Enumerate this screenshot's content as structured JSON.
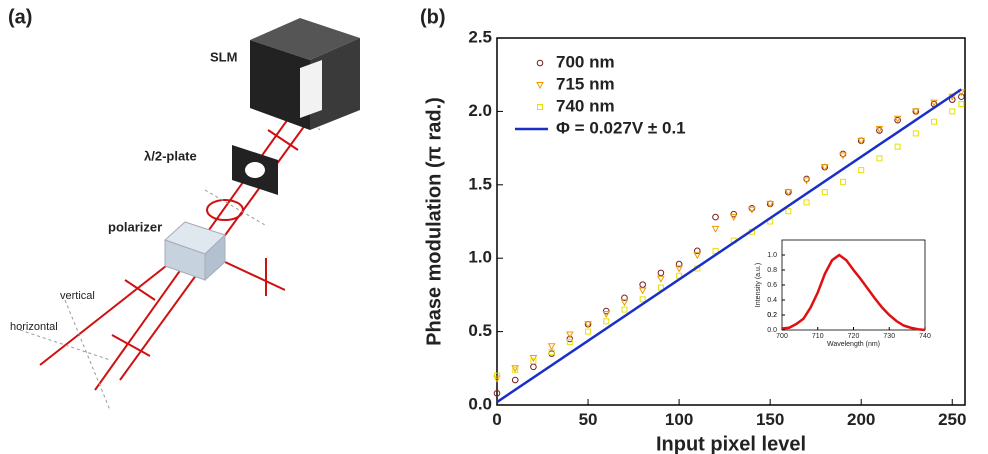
{
  "diagram": {
    "label": "(a)",
    "slm": "SLM",
    "plate": "λ/2-plate",
    "polarizer": "polarizer",
    "vertical": "vertical",
    "horizontal": "horizontal"
  },
  "chart_data": [
    {
      "type": "scatter",
      "label": "(b)",
      "xlabel": "Input pixel level",
      "ylabel": "Phase modulation (π rad.)",
      "x": [
        0,
        10,
        20,
        30,
        40,
        50,
        60,
        70,
        80,
        90,
        100,
        110,
        120,
        130,
        140,
        150,
        160,
        170,
        180,
        190,
        200,
        210,
        220,
        230,
        240,
        250,
        255
      ],
      "xlim": [
        0,
        257
      ],
      "ylim": [
        0,
        2.5
      ],
      "xticks": [
        0,
        50,
        100,
        150,
        200,
        250
      ],
      "yticks": [
        {
          "value": 0,
          "label": "0.0"
        },
        0.5,
        {
          "value": 1,
          "label": "1.0"
        },
        1.5,
        {
          "value": 2,
          "label": "2.0"
        },
        2.5
      ],
      "series": [
        {
          "name": "700 nm",
          "color": "#7a1c1c",
          "marker": "circle",
          "values": [
            0.08,
            0.17,
            0.26,
            0.35,
            0.45,
            0.55,
            0.64,
            0.73,
            0.82,
            0.9,
            0.96,
            1.05,
            1.28,
            1.3,
            1.34,
            1.37,
            1.45,
            1.54,
            1.62,
            1.71,
            1.8,
            1.87,
            1.94,
            2.0,
            2.05,
            2.08,
            2.1
          ]
        },
        {
          "name": "715 nm",
          "color": "#f09a00",
          "marker": "triangle",
          "values": [
            0.18,
            0.25,
            0.32,
            0.4,
            0.48,
            0.55,
            0.62,
            0.7,
            0.78,
            0.86,
            0.93,
            1.02,
            1.2,
            1.28,
            1.33,
            1.37,
            1.45,
            1.53,
            1.62,
            1.7,
            1.8,
            1.88,
            1.95,
            2.0,
            2.06,
            2.1,
            2.13
          ]
        },
        {
          "name": "740 nm",
          "color": "#e8e000",
          "marker": "square",
          "values": [
            0.2,
            0.24,
            0.3,
            0.36,
            0.43,
            0.5,
            0.57,
            0.65,
            0.72,
            0.8,
            0.88,
            0.93,
            1.05,
            1.12,
            1.18,
            1.25,
            1.32,
            1.38,
            1.45,
            1.52,
            1.6,
            1.68,
            1.76,
            1.85,
            1.93,
            2.0,
            2.05
          ]
        },
        {
          "name": "Φ = 0.027V ± 0.1",
          "color": "#1a2fc8",
          "marker": "line",
          "x": [
            0,
            255
          ],
          "values": [
            0.02,
            2.15
          ]
        }
      ]
    },
    {
      "type": "line",
      "xlabel": "Wavelength (nm)",
      "ylabel": "Intensity (a.u.)",
      "x": [
        700,
        702,
        704,
        706,
        708,
        710,
        712,
        714,
        716,
        718,
        720,
        722,
        724,
        726,
        728,
        730,
        732,
        734,
        736,
        738,
        740
      ],
      "xlim": [
        700,
        740
      ],
      "ylim": [
        0,
        1.2
      ],
      "xticks": [
        700,
        710,
        720,
        730,
        740
      ],
      "yticks": [
        {
          "value": 0,
          "label": "0.0"
        },
        0.2,
        0.4,
        0.6,
        0.8,
        {
          "value": 1,
          "label": "1.0"
        },
        0.2
      ],
      "series": [
        {
          "color": "#e01010",
          "values": [
            0.02,
            0.03,
            0.08,
            0.15,
            0.3,
            0.5,
            0.75,
            0.93,
            1.0,
            0.93,
            0.8,
            0.68,
            0.55,
            0.42,
            0.3,
            0.2,
            0.12,
            0.06,
            0.03,
            0.01,
            0.0
          ]
        }
      ]
    }
  ]
}
